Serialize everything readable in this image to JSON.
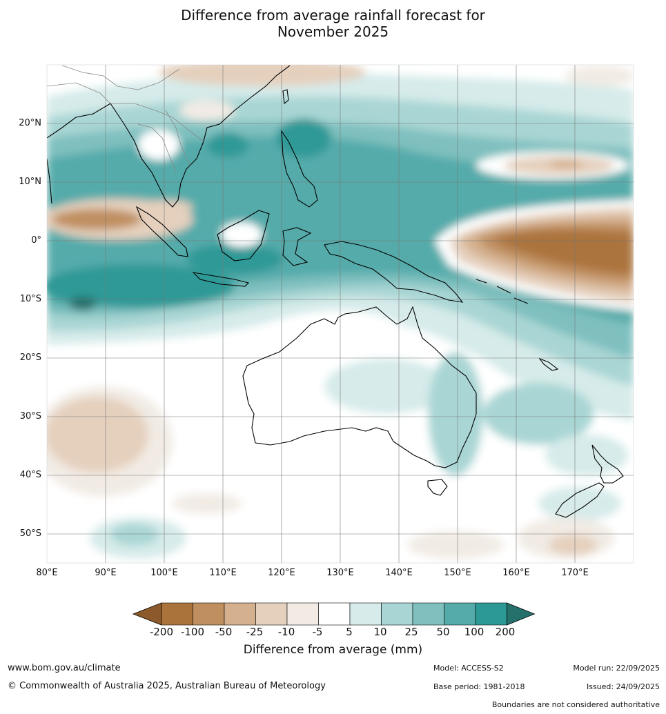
{
  "title_line1": "Difference from average rainfall forecast for",
  "title_line2": "November 2025",
  "lat_labels": [
    "20°N",
    "10°N",
    "0°",
    "10°S",
    "20°S",
    "30°S",
    "40°S",
    "50°S"
  ],
  "lon_labels": [
    "80°E",
    "90°E",
    "100°E",
    "110°E",
    "120°E",
    "130°E",
    "140°E",
    "150°E",
    "160°E",
    "170°E"
  ],
  "colorbar": {
    "ticks": [
      "-200",
      "-100",
      "-50",
      "-25",
      "-10",
      "-5",
      "5",
      "10",
      "25",
      "50",
      "100",
      "200"
    ],
    "colors": [
      "#8c5a2a",
      "#ab733c",
      "#bf8f60",
      "#d4b08f",
      "#e5d0bd",
      "#f1ebe4",
      "#ffffff",
      "#d6ebea",
      "#a9d6d4",
      "#7fc0bf",
      "#55abaa",
      "#2d9996",
      "#26706c"
    ],
    "label": "Difference from average (mm)"
  },
  "footer": {
    "website": "www.bom.gov.au/climate",
    "copyright": "© Commonwealth of Australia 2025, Australian Bureau of Meteorology",
    "model": "Model: ACCESS-S2",
    "model_run": "Model run: 22/09/2025",
    "base_period": "Base period: 1981-2018",
    "issued": "Issued: 24/09/2025",
    "boundaries_note": "Boundaries are not considered authoritative"
  }
}
